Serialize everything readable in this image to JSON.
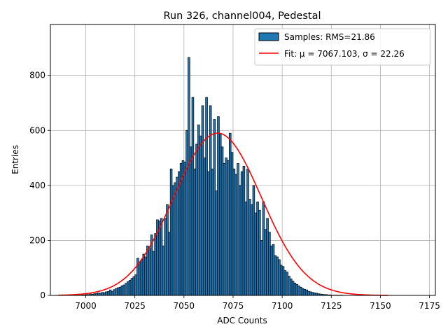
{
  "chart_data": {
    "type": "bar",
    "title": "Run 326, channel004, Pedestal",
    "xlabel": "ADC Counts",
    "ylabel": "Entries",
    "xlim": [
      6982,
      7178
    ],
    "ylim": [
      0,
      985
    ],
    "xticks": [
      7000,
      7025,
      7050,
      7075,
      7100,
      7125,
      7150,
      7175
    ],
    "yticks": [
      0,
      200,
      400,
      600,
      800
    ],
    "grid": true,
    "legend_position": "top-right",
    "series": [
      {
        "name": "Samples: RMS=21.86",
        "kind": "histogram",
        "color": "#1f77b4",
        "edgecolor": "#000000",
        "bin_width": 1,
        "x_start": 6995,
        "values": [
          1,
          1,
          1,
          2,
          2,
          3,
          3,
          5,
          4,
          6,
          7,
          9,
          8,
          11,
          10,
          13,
          14,
          20,
          15,
          21,
          25,
          28,
          30,
          35,
          38,
          44,
          50,
          55,
          62,
          68,
          75,
          135,
          120,
          130,
          150,
          140,
          180,
          170,
          220,
          160,
          225,
          275,
          270,
          280,
          180,
          280,
          330,
          230,
          460,
          400,
          410,
          430,
          450,
          480,
          490,
          485,
          600,
          865,
          540,
          720,
          460,
          550,
          620,
          580,
          690,
          500,
          720,
          450,
          690,
          460,
          640,
          380,
          650,
          590,
          540,
          480,
          500,
          490,
          590,
          520,
          460,
          440,
          480,
          400,
          450,
          470,
          340,
          460,
          350,
          330,
          400,
          300,
          340,
          310,
          200,
          340,
          240,
          280,
          230,
          180,
          185,
          145,
          140,
          130,
          110,
          105,
          90,
          85,
          70,
          60,
          52,
          45,
          40,
          35,
          30,
          25,
          22,
          20,
          15,
          13,
          11,
          9,
          8,
          6,
          5,
          4,
          3,
          3,
          2,
          2,
          1,
          1,
          1,
          1,
          1,
          1
        ]
      },
      {
        "name": "Fit: μ = 7067.103, σ = 22.26",
        "kind": "gaussian-fit",
        "color": "#ff0000",
        "mu": 7067.103,
        "sigma": 22.26,
        "amplitude": 590,
        "x_range": [
          6986,
          7154
        ]
      }
    ]
  }
}
